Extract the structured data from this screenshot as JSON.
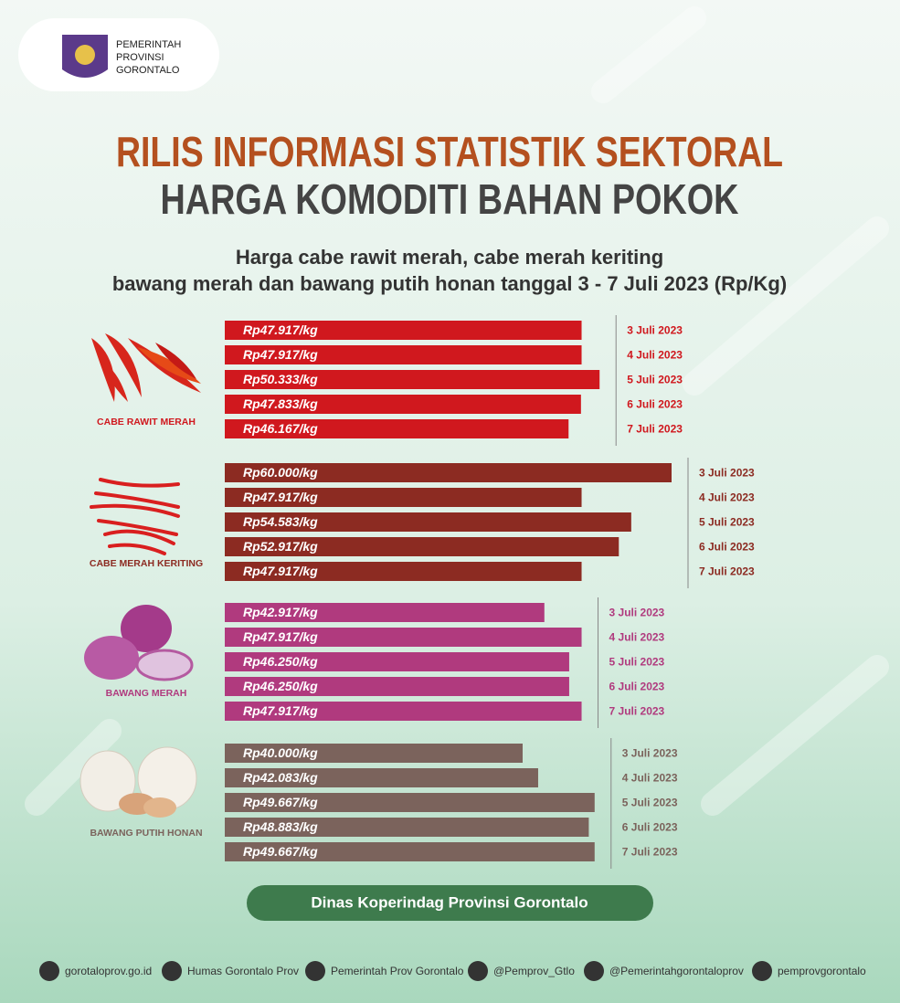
{
  "header": {
    "logo_lines": [
      "PEMERINTAH",
      "PROVINSI",
      "GORONTALO"
    ],
    "title": "RILIS INFORMASI STATISTIK SEKTORAL",
    "title2": "HARGA KOMODITI BAHAN POKOK",
    "subtitle_lines": [
      "Harga cabe rawit merah, cabe merah keriting",
      "bawang merah dan bawang putih honan tanggal 3 - 7 Juli 2023 (Rp/Kg)"
    ]
  },
  "chart_data": [
    {
      "type": "bar",
      "title": "CABE RAWIT MERAH",
      "color": "#d0181e",
      "categories": [
        "3 Juli 2023",
        "4 Juli 2023",
        "5 Juli 2023",
        "6 Juli 2023",
        "7 Juli 2023"
      ],
      "values": [
        47917,
        47917,
        50333,
        47833,
        46167
      ],
      "value_labels": [
        "Rp47.917/kg",
        "Rp47.917/kg",
        "Rp50.333/kg",
        "Rp47.833/kg",
        "Rp46.167/kg"
      ]
    },
    {
      "type": "bar",
      "title": "CABE MERAH KERITING",
      "color": "#8c2b22",
      "categories": [
        "3 Juli 2023",
        "4 Juli 2023",
        "5 Juli 2023",
        "6 Juli 2023",
        "7 Juli 2023"
      ],
      "values": [
        60000,
        47917,
        54583,
        52917,
        47917
      ],
      "value_labels": [
        "Rp60.000/kg",
        "Rp47.917/kg",
        "Rp54.583/kg",
        "Rp52.917/kg",
        "Rp47.917/kg"
      ]
    },
    {
      "type": "bar",
      "title": "BAWANG MERAH",
      "color": "#b03a7e",
      "categories": [
        "3 Juli 2023",
        "4 Juli 2023",
        "5 Juli 2023",
        "6 Juli 2023",
        "7 Juli 2023"
      ],
      "values": [
        42917,
        47917,
        46250,
        46250,
        47917
      ],
      "value_labels": [
        "Rp42.917/kg",
        "Rp47.917/kg",
        "Rp46.250/kg",
        "Rp46.250/kg",
        "Rp47.917/kg"
      ]
    },
    {
      "type": "bar",
      "title": "BAWANG PUTIH HONAN",
      "color": "#7b635c",
      "categories": [
        "3 Juli 2023",
        "4 Juli 2023",
        "5 Juli 2023",
        "6 Juli 2023",
        "7 Juli 2023"
      ],
      "values": [
        40000,
        42083,
        49667,
        48883,
        49667
      ],
      "value_labels": [
        "Rp40.000/kg",
        "Rp42.083/kg",
        "Rp49.667/kg",
        "Rp48.883/kg",
        "Rp49.667/kg"
      ]
    }
  ],
  "footer": {
    "agency": "Dinas Koperindag Provinsi Gorontalo",
    "links": [
      "gorotaloprov.go.id",
      "Humas Gorontalo Prov",
      "Pemerintah Prov Gorontalo",
      "@Pemprov_Gtlo",
      "@Pemerintahgorontaloprov",
      "pemprovgorontalo"
    ]
  }
}
